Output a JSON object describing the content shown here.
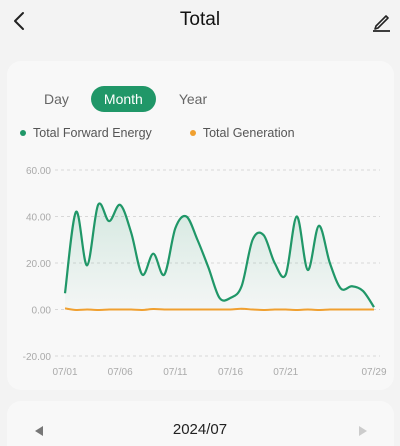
{
  "header": {
    "title": "Total"
  },
  "tabs": [
    {
      "label": "Day",
      "active": false
    },
    {
      "label": "Month",
      "active": true
    },
    {
      "label": "Year",
      "active": false
    }
  ],
  "legend": [
    {
      "label": "Total Forward Energy",
      "color": "#209768"
    },
    {
      "label": "Total Generation",
      "color": "#f0a030"
    }
  ],
  "chart_data": {
    "type": "area",
    "x_ticks": [
      "07/01",
      "07/06",
      "07/11",
      "07/16",
      "07/21",
      "07/29"
    ],
    "y_ticks": [
      "60.00",
      "40.00",
      "20.00",
      "0.00",
      "-20.00"
    ],
    "ylim": [
      -20,
      60
    ],
    "x": [
      1,
      2,
      3,
      4,
      5,
      6,
      7,
      8,
      9,
      10,
      11,
      12,
      13,
      14,
      15,
      16,
      17,
      18,
      19,
      20,
      21,
      22,
      23,
      24,
      25,
      26,
      27,
      28,
      29
    ],
    "series": [
      {
        "name": "Total Forward Energy",
        "color": "#209768",
        "values": [
          7,
          42,
          19,
          45,
          38,
          45,
          33,
          15,
          24,
          15,
          35,
          40,
          30,
          18,
          5,
          5,
          10,
          30,
          32,
          20,
          15,
          40,
          17,
          36,
          20,
          9,
          10,
          8,
          1
        ]
      },
      {
        "name": "Total Generation",
        "color": "#f0a030",
        "values": [
          0.5,
          -0.2,
          0,
          -0.2,
          0,
          0,
          0,
          -0.2,
          0.2,
          0,
          0,
          0,
          0,
          0,
          0,
          0,
          0.3,
          0,
          -0.2,
          0,
          0,
          -0.2,
          0,
          -0.2,
          0,
          0,
          0,
          0,
          0
        ]
      }
    ],
    "grid": true,
    "legend_position": "top-left"
  },
  "footer": {
    "period": "2024/07"
  },
  "colors": {
    "accent": "#209768",
    "secondary": "#f0a030"
  }
}
